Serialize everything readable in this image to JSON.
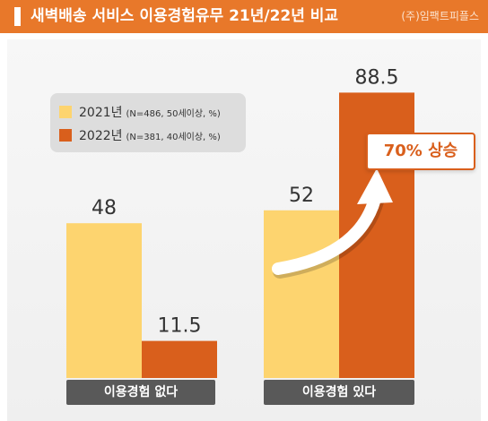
{
  "header": {
    "title": "새벽배송 서비스 이용경험유무 21년/22년 비교",
    "source": "(주)임팩트피플스"
  },
  "colors": {
    "header": "#e8782a",
    "series_2021": "#fdd46f",
    "series_2022": "#d95f1c",
    "category_label_bg": "#595959"
  },
  "callout": {
    "text": "70% 상승"
  },
  "chart_data": {
    "type": "bar",
    "categories": [
      "이용경험 없다",
      "이용경험 있다"
    ],
    "series": [
      {
        "name": "2021년",
        "note": "(N=486, 50세이상, %)",
        "values": [
          48,
          52
        ],
        "value_labels": [
          "48",
          "52"
        ]
      },
      {
        "name": "2022년",
        "note": "(N=381, 40세이상, %)",
        "values": [
          11.5,
          88.5
        ],
        "value_labels": [
          "11.5",
          "88.5"
        ]
      }
    ],
    "title": "새벽배송 서비스 이용경험유무 21년/22년 비교",
    "xlabel": "",
    "ylabel": "",
    "ylim": [
      0,
      100
    ],
    "grid": false,
    "legend": "top-left"
  }
}
